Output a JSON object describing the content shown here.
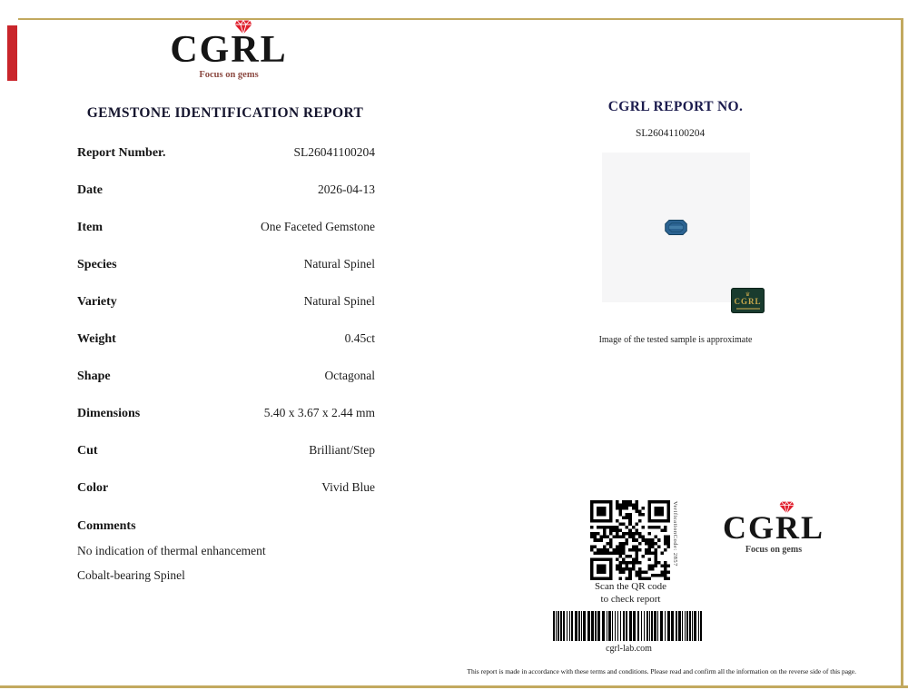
{
  "page": {
    "accent_red": "#c9252b",
    "border_gold": "#c2a95f",
    "logo_diamond_red": "#e01f2d",
    "gem_blue": "#2c6392",
    "label_green": "#193b2e",
    "label_gold": "#c9a84c"
  },
  "logo": {
    "text": "CGRL",
    "tagline": "Focus on gems"
  },
  "report": {
    "title": "GEMSTONE IDENTIFICATION REPORT",
    "rows": [
      {
        "label": "Report Number.",
        "value": "SL26041100204"
      },
      {
        "label": "Date",
        "value": "2026-04-13"
      },
      {
        "label": "Item",
        "value": "One Faceted Gemstone"
      },
      {
        "label": "Species",
        "value": "Natural Spinel"
      },
      {
        "label": "Variety",
        "value": "Natural Spinel"
      },
      {
        "label": "Weight",
        "value": "0.45ct"
      },
      {
        "label": "Shape",
        "value": "Octagonal"
      },
      {
        "label": "Dimensions",
        "value": "5.40 x 3.67 x 2.44 mm"
      },
      {
        "label": "Cut",
        "value": "Brilliant/Step"
      },
      {
        "label": "Color",
        "value": "Vivid Blue"
      }
    ],
    "comments_label": "Comments",
    "comments": [
      "No indication of thermal enhancement",
      "Cobalt-bearing Spinel"
    ]
  },
  "photo_panel": {
    "heading": "CGRL REPORT NO.",
    "report_no": "SL26041100204",
    "watermark": "CGRL",
    "caption": "Image of the tested sample is approximate"
  },
  "qr_section": {
    "side_text": "VerificationCode:  2857",
    "caption_line1": "Scan the QR code",
    "caption_line2": "to check report"
  },
  "footer": {
    "barcode_label": "cgrl-lab.com",
    "disclaimer": "This report is made in accordance with these terms and conditions. Please read and confirm all the information on the reverse side of this page."
  }
}
